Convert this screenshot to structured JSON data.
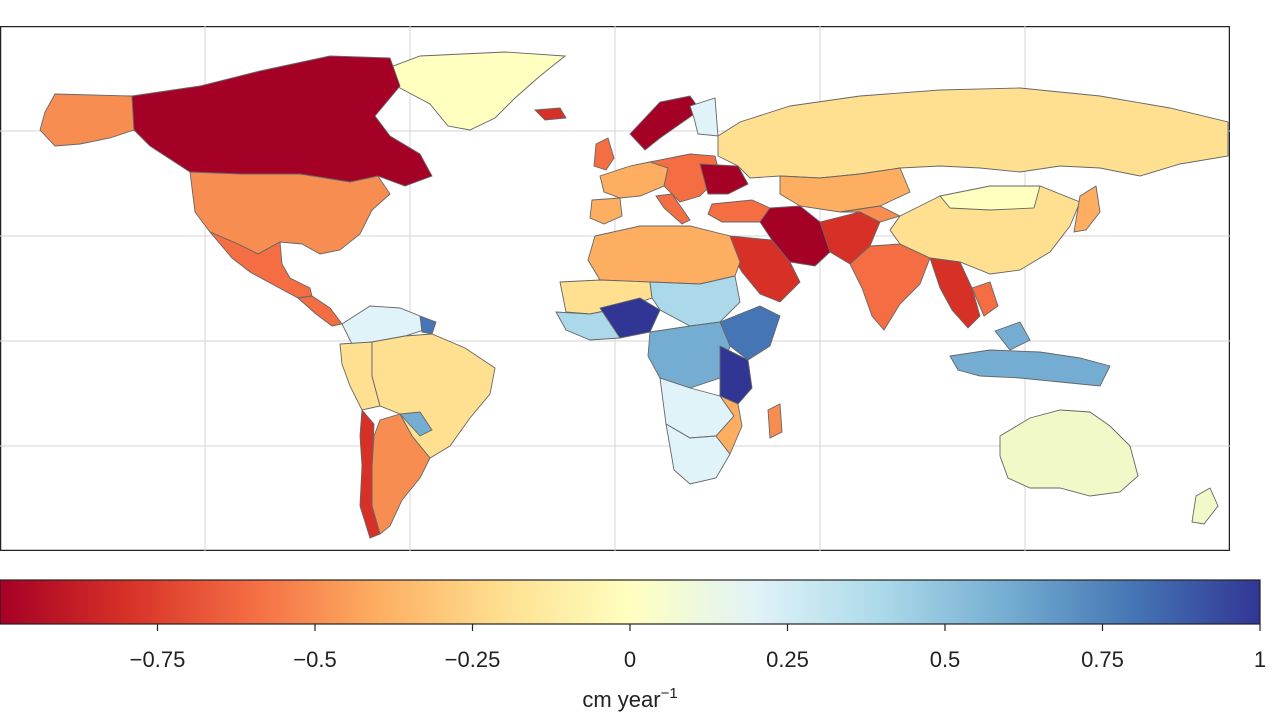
{
  "map": {
    "description_type": "choropleth",
    "graticule": true
  },
  "colorbar": {
    "tick_labels": [
      "−0.75",
      "−0.5",
      "−0.25",
      "0",
      "0.25",
      "0.5",
      "0.75",
      "1"
    ],
    "tick_values": [
      -0.75,
      -0.5,
      -0.25,
      0,
      0.25,
      0.5,
      0.75,
      1
    ],
    "range": [
      -1,
      1
    ],
    "unit_main": "cm year",
    "unit_sup": "−1",
    "colors": [
      "#a50026",
      "#d73027",
      "#f46d43",
      "#fdae61",
      "#fee090",
      "#ffffbf",
      "#e0f3f8",
      "#abd9e9",
      "#74add1",
      "#4575b4",
      "#313695"
    ]
  }
}
